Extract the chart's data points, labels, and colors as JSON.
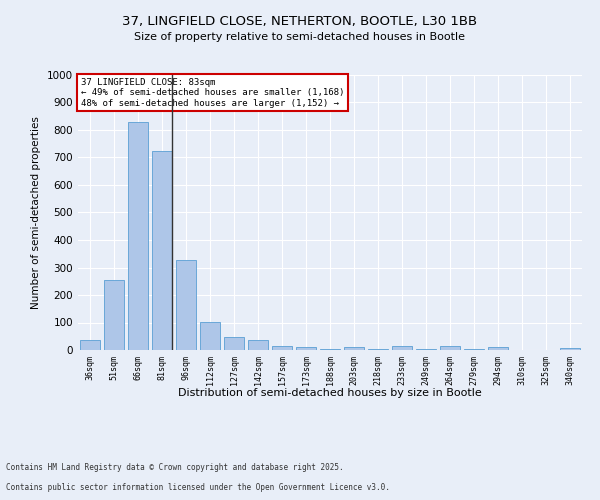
{
  "title_line1": "37, LINGFIELD CLOSE, NETHERTON, BOOTLE, L30 1BB",
  "title_line2": "Size of property relative to semi-detached houses in Bootle",
  "xlabel": "Distribution of semi-detached houses by size in Bootle",
  "ylabel": "Number of semi-detached properties",
  "categories": [
    "36sqm",
    "51sqm",
    "66sqm",
    "81sqm",
    "96sqm",
    "112sqm",
    "127sqm",
    "142sqm",
    "157sqm",
    "173sqm",
    "188sqm",
    "203sqm",
    "218sqm",
    "233sqm",
    "249sqm",
    "264sqm",
    "279sqm",
    "294sqm",
    "310sqm",
    "325sqm",
    "340sqm"
  ],
  "values": [
    35,
    255,
    828,
    722,
    328,
    103,
    48,
    37,
    14,
    10,
    5,
    10,
    5,
    15,
    5,
    14,
    5,
    10,
    1,
    1,
    8
  ],
  "bar_color": "#aec6e8",
  "bar_edge_color": "#5a9fd4",
  "highlight_bar_index": 3,
  "highlight_line_color": "#333333",
  "annotation_title": "37 LINGFIELD CLOSE: 83sqm",
  "annotation_line1": "← 49% of semi-detached houses are smaller (1,168)",
  "annotation_line2": "48% of semi-detached houses are larger (1,152) →",
  "annotation_box_color": "#ffffff",
  "annotation_box_edge_color": "#cc0000",
  "footer_line1": "Contains HM Land Registry data © Crown copyright and database right 2025.",
  "footer_line2": "Contains public sector information licensed under the Open Government Licence v3.0.",
  "bg_color": "#e8eef8",
  "plot_bg_color": "#e8eef8",
  "ylim": [
    0,
    1000
  ],
  "yticks": [
    0,
    100,
    200,
    300,
    400,
    500,
    600,
    700,
    800,
    900,
    1000
  ]
}
